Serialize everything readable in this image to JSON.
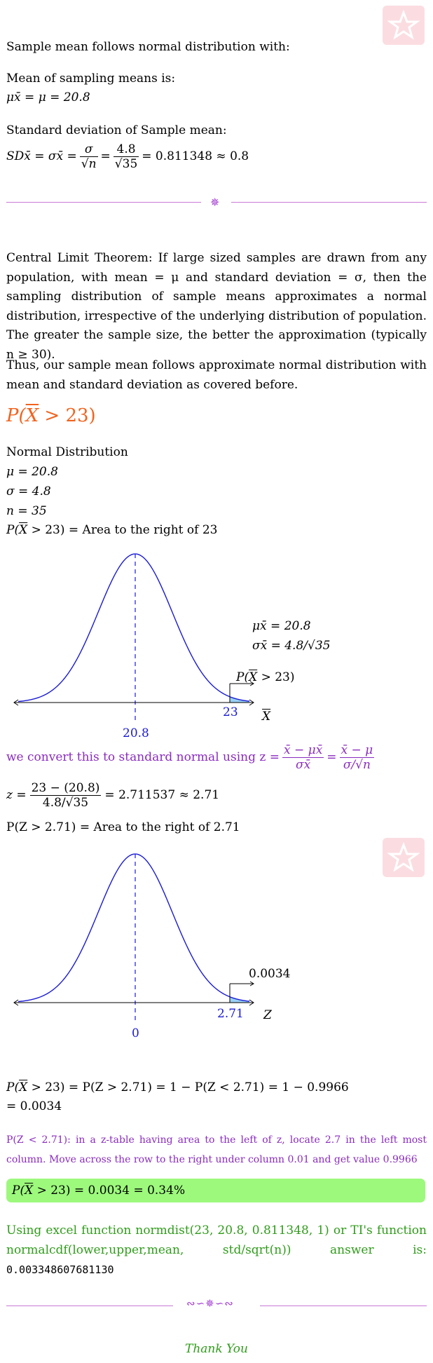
{
  "header": {
    "intro": "Sample mean follows normal distribution with:",
    "mean_label": "Mean of sampling means is:",
    "mean_eq": "μx̄ = μ = 20.8",
    "sd_label": "Standard deviation of Sample mean:",
    "sd_lhs": "SDx̄ = σx̄ = ",
    "sd_num1": "σ",
    "sd_den1": "√n",
    "sd_num2": "4.8",
    "sd_den2": "√35",
    "sd_result": "= 0.811348 ≈ 0.8"
  },
  "clt": {
    "paragraph": "Central Limit Theorem: If large sized samples are drawn from any population, with mean = μ and standard deviation = σ, then the sampling distribution of sample means approximates a normal distribution, irrespective of the underlying distribution of population. The greater the sample size, the better the approximation (typically n ≥ 30).",
    "thus": "Thus, our sample mean follows approximate normal distribution with mean and standard deviation as covered before."
  },
  "problem": {
    "heading_pre": "P(",
    "heading_x": "X",
    "heading_post": " > 23)",
    "dist": "Normal Distribution",
    "mu": "μ = 20.8",
    "sigma": "σ = 4.8",
    "n": "n = 35",
    "area_pre": "P(",
    "area_x": "X",
    "area_post": " > 23) = Area to the right of 23"
  },
  "graph1": {
    "legend_mu": "μx̄ = 20.8",
    "legend_sigma": "σx̄ = 4.8/√35",
    "callout_pre": "P(",
    "callout_x": "X",
    "callout_post": " > 23)",
    "center_label": "20.8",
    "cut_label": "23",
    "axis_label": "X"
  },
  "convert": {
    "text": "we convert this to standard normal using z =",
    "num1": "x̄ − μx̄",
    "den1": "σx̄",
    "num2": "x̄ − μ",
    "den2": "σ/√n"
  },
  "zcalc": {
    "lhs": "z =",
    "num": "23 − (20.8)",
    "den": "4.8/√35",
    "result": "= 2.711537 ≈ 2.71"
  },
  "zarea": "P(Z > 2.71) = Area to the right of 2.71",
  "graph2": {
    "callout": "0.0034",
    "center_label": "0",
    "cut_label": "2.71",
    "axis_label": "Z"
  },
  "final": {
    "line1_pre": "P(",
    "line1_x": "X",
    "line1_post": " > 23) = P(Z > 2.71) = 1 − P(Z < 2.71) = 1 − 0.9966",
    "line2": "= 0.0034",
    "table_note": "P(Z < 2.71): in a z-table having area to the left of z, locate 2.7 in the left most column. Move across the row to the right under column 0.01 and get value 0.9966",
    "answer_pre": "P(",
    "answer_x": "X",
    "answer_post": " > 23) = 0.0034 = 0.34%",
    "excel": "Using excel function normdist(23, 20.8, 0.811348, 1) or TI's function normalcdf(lower,upper,mean, std/sqrt(n)) answer is:",
    "excel_value": "0.003348607681130"
  },
  "footer": {
    "thanks": "Thank You"
  },
  "colors": {
    "violet": "#8a2bbf",
    "blue": "#1b1bd6",
    "green_box": "#9cf97c",
    "orange": "#f0641e",
    "curve_fill": "#9ad0f5"
  }
}
